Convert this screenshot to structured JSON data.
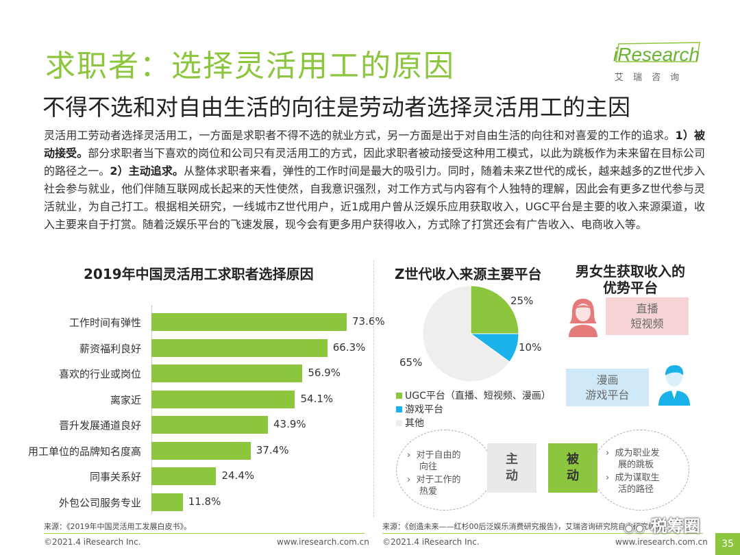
{
  "header": {
    "title": "求职者：选择灵活用工的原因",
    "subtitle": "不得不选和对自由生活的向往是劳动者选择灵活用工的主因",
    "logo_text": "iResearch",
    "logo_cn": "艾瑞咨询"
  },
  "paragraph": {
    "p1": "灵活用工劳动者选择灵活用工，一方面是求职者不得不选的就业方式，另一方面是出于对自由生活的向往和对喜爱的工作的追求。",
    "b1": "1）被动接受。",
    "p2": "部分求职者当下喜欢的岗位和公司只有灵活用工的方式，因此求职者被动接受这种用工模式，以此为跳板作为未来留在目标公司的路径之一。",
    "b2": "2）主动追求。",
    "p3": "从整体求职者来看，弹性的工作时间是最大的吸引力。同时，随着未来Z世代的成长，越来越多的Z世代步入社会参与就业，他们伴随互联网成长起来的天性使然，自我意识强烈，对工作方式与内容有个人独特的理解，因此会有更多Z世代参与灵活就业，为自己打工。根据相关研究，一线城市Z世代用户，近1成用户曾从泛娱乐应用获取收入，UGC平台是主要的收入来源渠道，收入主要来自于打赏。随着泛娱乐平台的飞速发展，现今会有更多用户获得收入，方式除了打赏还会有广告收入、电商收入等。"
  },
  "chart_data": [
    {
      "type": "bar",
      "title": "2019年中国灵活用工求职者选择原因",
      "categories": [
        "工作时间有弹性",
        "薪资福利良好",
        "喜欢的行业或岗位",
        "离家近",
        "晋升发展通道良好",
        "用工单位的品牌知名度高",
        "同事关系好",
        "外包公司服务专业"
      ],
      "values": [
        73.6,
        66.3,
        56.9,
        54.1,
        43.9,
        37.4,
        24.4,
        11.8
      ],
      "value_labels": [
        "73.6%",
        "66.3%",
        "56.9%",
        "54.1%",
        "43.9%",
        "37.4%",
        "24.4%",
        "11.8%"
      ],
      "orientation": "horizontal",
      "color": "#8cc63e",
      "source": "来源：《2019年中国灵活用工发展白皮书》。"
    },
    {
      "type": "pie",
      "title": "Z世代收入来源主要平台",
      "labels": [
        "UGC平台（直播、短视频、漫画）",
        "游戏平台",
        "其他"
      ],
      "values": [
        25,
        10,
        65
      ],
      "value_labels": [
        "25%",
        "10%",
        "65%"
      ],
      "colors": [
        "#8cc63e",
        "#1ab2e8",
        "#eeeeee"
      ],
      "legend_position": "bottom",
      "source": "来源：《创造未来——红杉00后泛娱乐消费研究报告》，艾瑞咨询研究院自主研究绘制"
    }
  ],
  "advantage": {
    "title_line1": "男女生获取收入的",
    "title_line2": "优势平台",
    "female_line1": "直播",
    "female_line2": "短视频",
    "male_line1": "漫画",
    "male_line2": "游戏平台"
  },
  "motives": {
    "active_label_1": "主",
    "active_label_2": "动",
    "passive_label_1": "被",
    "passive_label_2": "动",
    "active_items": [
      {
        "line1": "对于自由的",
        "line2": "向往"
      },
      {
        "line1": "对于工作的",
        "line2": "热爱"
      }
    ],
    "passive_items": [
      {
        "line1": "成为职业发",
        "line2": "展的跳板"
      },
      {
        "line1": "成为谋取生",
        "line2": "活的路径"
      }
    ]
  },
  "footer": {
    "copyright_left": "©2021.4 iResearch Inc.",
    "url_left": "www.iresearch.com.cn",
    "copyright_right": "©2021.4 iResearch Inc.",
    "url_right": "www.iresearch.com.cn",
    "page": "35",
    "watermark": "税筹圈"
  }
}
